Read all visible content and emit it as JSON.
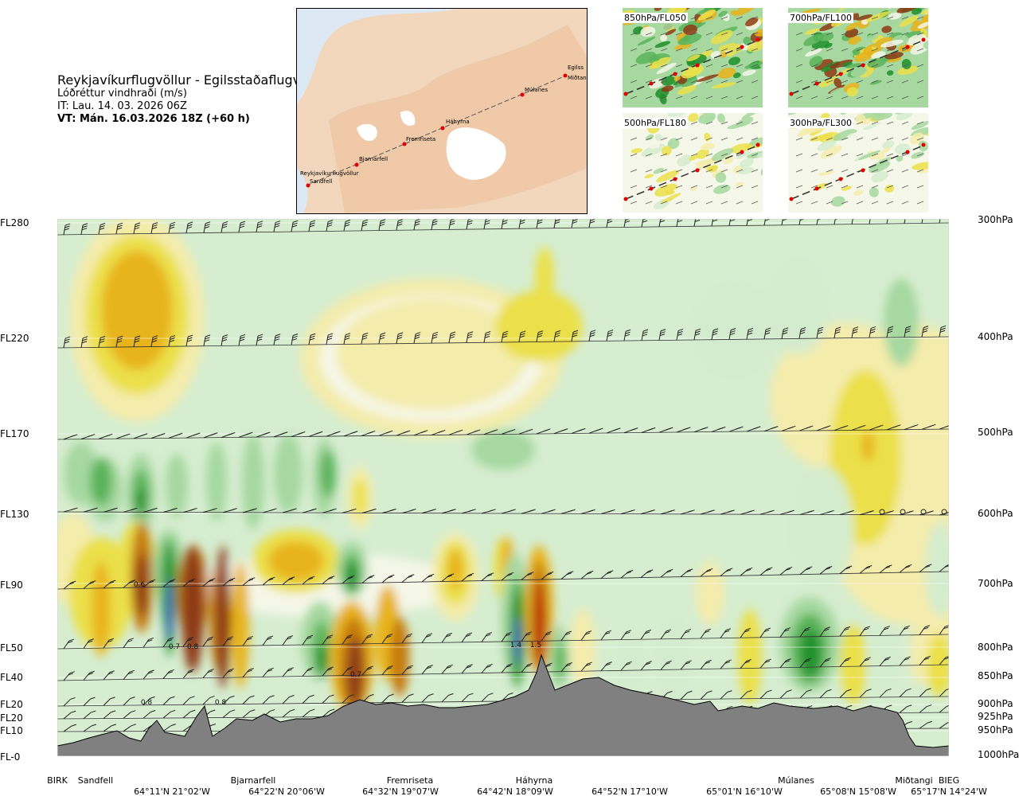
{
  "header": {
    "title": "Reykjavíkurflugvöllur - Egilsstaðaflugvöllur",
    "subtitle": "Lóðréttur vindhraði (m/s)",
    "issue_time": "IT: Lau. 14. 03. 2026 06Z",
    "valid_time": "VT: Mán. 16.03.2026 18Z (+60 h)"
  },
  "map": {
    "places": [
      "Reykjavíkurflugvöllur",
      "Sandfell",
      "Bjarnarfell",
      "Fremriseta",
      "Háhyrna",
      "Múlanes",
      "Egilss",
      "Miðtangi"
    ]
  },
  "thumbnails": [
    {
      "label": "850hPa/FL050"
    },
    {
      "label": "700hPa/FL100"
    },
    {
      "label": "500hPa/FL180"
    },
    {
      "label": "300hPa/FL300"
    }
  ],
  "chart_data": {
    "type": "heatmap",
    "title": "Lóðréttur vindhraði (m/s)",
    "y_left_ticks": [
      "FL280",
      "FL220",
      "FL170",
      "FL130",
      "FL90",
      "FL50",
      "FL40",
      "FL20",
      "FL20",
      "FL10",
      "FL-0"
    ],
    "y_right_ticks": [
      "300hPa",
      "400hPa",
      "500hPa",
      "600hPa",
      "700hPa",
      "800hPa",
      "850hPa",
      "900hPa",
      "925hPa",
      "950hPa",
      "1000hPa"
    ],
    "x_places": [
      "BIRK",
      "Sandfell",
      "Bjarnarfell",
      "Fremriseta",
      "Háhyrna",
      "Múlanes",
      "Miðtangi",
      "BIEG"
    ],
    "x_coords": [
      "64°11'N 21°02'W",
      "64°22'N 20°06'W",
      "64°32'N 19°07'W",
      "64°42'N 18°09'W",
      "64°52'N 17°10'W",
      "65°01'N 16°10'W",
      "65°08'N 15°08'W",
      "65°17'N 14°24'W"
    ],
    "annotations": [
      {
        "text": "0.6",
        "place": "Sandfell-east",
        "level": "FL90"
      },
      {
        "text": "0.7",
        "place": "Sandfell-east",
        "level": "FL50"
      },
      {
        "text": "0.8",
        "place": "Sandfell-east",
        "level": "FL50"
      },
      {
        "text": "0.8",
        "place": "BIRK-east",
        "level": "FL20"
      },
      {
        "text": "0.8",
        "place": "Bjarnarfell-west",
        "level": "FL20"
      },
      {
        "text": "0.7",
        "place": "Bjarnarfell-east",
        "level": "FL40"
      },
      {
        "text": "1.4",
        "place": "Háhyrna",
        "level": "FL50"
      },
      {
        "text": "1.5",
        "place": "Háhyrna",
        "level": "FL50"
      }
    ],
    "colors": {
      "strong_down": "#4b5bc8",
      "down_dark": "#1f8f2a",
      "down_mid": "#5ab45a",
      "down_light": "#a6d8a0",
      "down_faint": "#d4ecce",
      "neutral": "#f5f7e8",
      "up_faint": "#f4ecab",
      "up_light": "#ebe04a",
      "up_mid": "#e8b41c",
      "up_dark": "#c47a10",
      "up_strong": "#8e3a14",
      "up_max": "#b81a10",
      "terrain": "#808080"
    }
  }
}
